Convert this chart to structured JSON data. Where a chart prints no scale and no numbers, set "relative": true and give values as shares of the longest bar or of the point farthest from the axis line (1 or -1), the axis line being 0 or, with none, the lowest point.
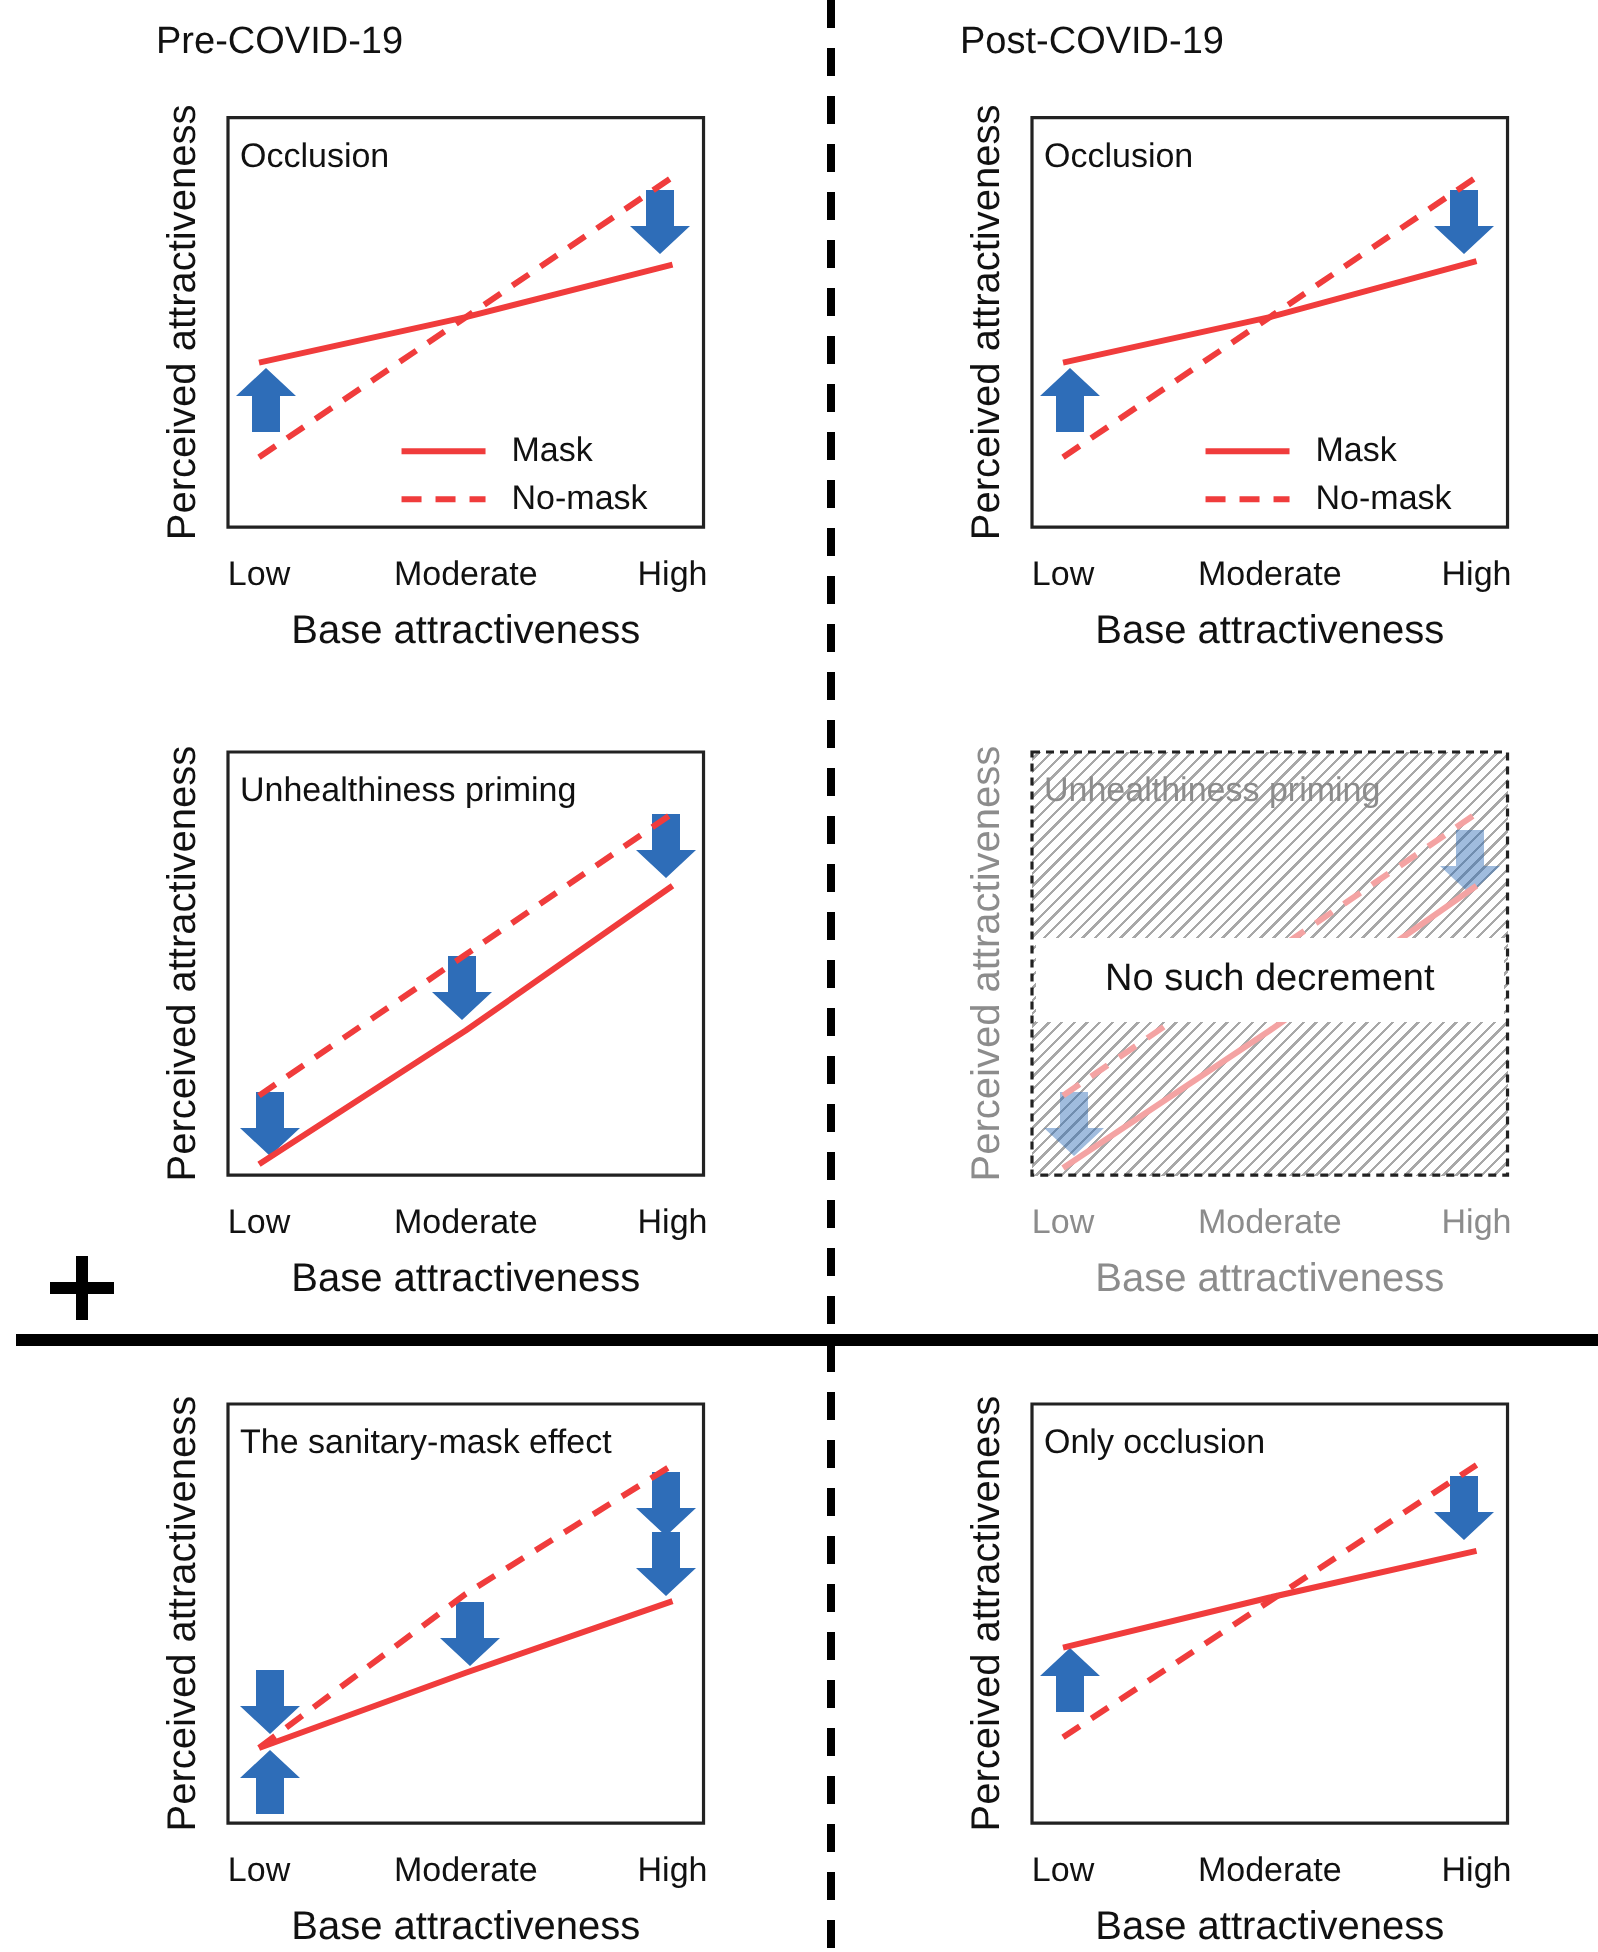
{
  "chart_data": [
    {
      "type": "line",
      "title": "Pre-COVID-19",
      "xlabel": "Base attractiveness",
      "ylabel": "Perceived attractiveness",
      "annotations": [
        "Occlusion"
      ],
      "categories": [
        "Low",
        "Moderate",
        "High"
      ],
      "relative": true,
      "legend": "bottom right",
      "series": [
        {
          "name": "Mask",
          "color": "#f03c3c",
          "values": [
            0.47,
            0.6,
            0.75
          ],
          "line_style": "solid"
        },
        {
          "name": "No-mask",
          "color": "#f03c3c",
          "values": [
            0.2,
            0.6,
            1
          ],
          "line_style": "dashed"
        }
      ]
    },
    {
      "type": "line",
      "title": "Post-COVID-19",
      "xlabel": "Base attractiveness",
      "ylabel": "Perceived attractiveness",
      "annotations": [
        "Occlusion"
      ],
      "categories": [
        "Low",
        "Moderate",
        "High"
      ],
      "relative": true,
      "legend": "bottom right",
      "series": [
        {
          "name": "Mask",
          "color": "#f03c3c",
          "values": [
            0.47,
            0.6,
            0.76
          ],
          "line_style": "solid"
        },
        {
          "name": "No-mask",
          "color": "#f03c3c",
          "values": [
            0.2,
            0.6,
            1
          ],
          "line_style": "dashed"
        }
      ]
    },
    {
      "type": "line",
      "xlabel": "Base attractiveness",
      "ylabel": "Perceived attractiveness",
      "annotations": [
        "Unhealthiness priming"
      ],
      "categories": [
        "Low",
        "Moderate",
        "High"
      ],
      "relative": true,
      "series": [
        {
          "color": "#f03c3c",
          "values": [
            0.03,
            0.4,
            0.8
          ],
          "line_style": "solid"
        },
        {
          "color": "#f03c3c",
          "values": [
            0.22,
            0.61,
            1
          ],
          "line_style": "dashed"
        }
      ]
    },
    {
      "type": "line",
      "xlabel": "Base attractiveness",
      "ylabel": "Perceived attractiveness",
      "annotations": [
        "Unhealthiness priming",
        "No such decrement"
      ],
      "categories": [
        "Low",
        "Moderate",
        "High"
      ],
      "relative": true,
      "series": [
        {
          "color": "#f4a3a3",
          "values": [
            0.02,
            0.4,
            0.8
          ],
          "line_style": "solid"
        },
        {
          "color": "#f4a3a3",
          "values": [
            0.22,
            null,
            1
          ],
          "line_style": "dashed"
        }
      ]
    },
    {
      "type": "line",
      "xlabel": "Base attractiveness",
      "ylabel": "Perceived attractiveness",
      "annotations": [
        "The sanitary-mask effect"
      ],
      "categories": [
        "Low",
        "Moderate",
        "High"
      ],
      "relative": true,
      "series": [
        {
          "color": "#f03c3c",
          "values": [
            0.21,
            0.42,
            0.62
          ],
          "line_style": "solid"
        },
        {
          "color": "#f03c3c",
          "values": [
            0.21,
            0.64,
            1
          ],
          "line_style": "dashed"
        }
      ]
    },
    {
      "type": "line",
      "xlabel": "Base attractiveness",
      "ylabel": "Perceived attractiveness",
      "annotations": [
        "Only occlusion"
      ],
      "categories": [
        "Low",
        "Moderate",
        "High"
      ],
      "relative": true,
      "series": [
        {
          "color": "#f03c3c",
          "values": [
            0.49,
            0.63,
            0.76
          ],
          "line_style": "solid"
        },
        {
          "color": "#f03c3c",
          "values": [
            0.24,
            0.62,
            1
          ],
          "line_style": "dashed"
        }
      ]
    }
  ]
}
